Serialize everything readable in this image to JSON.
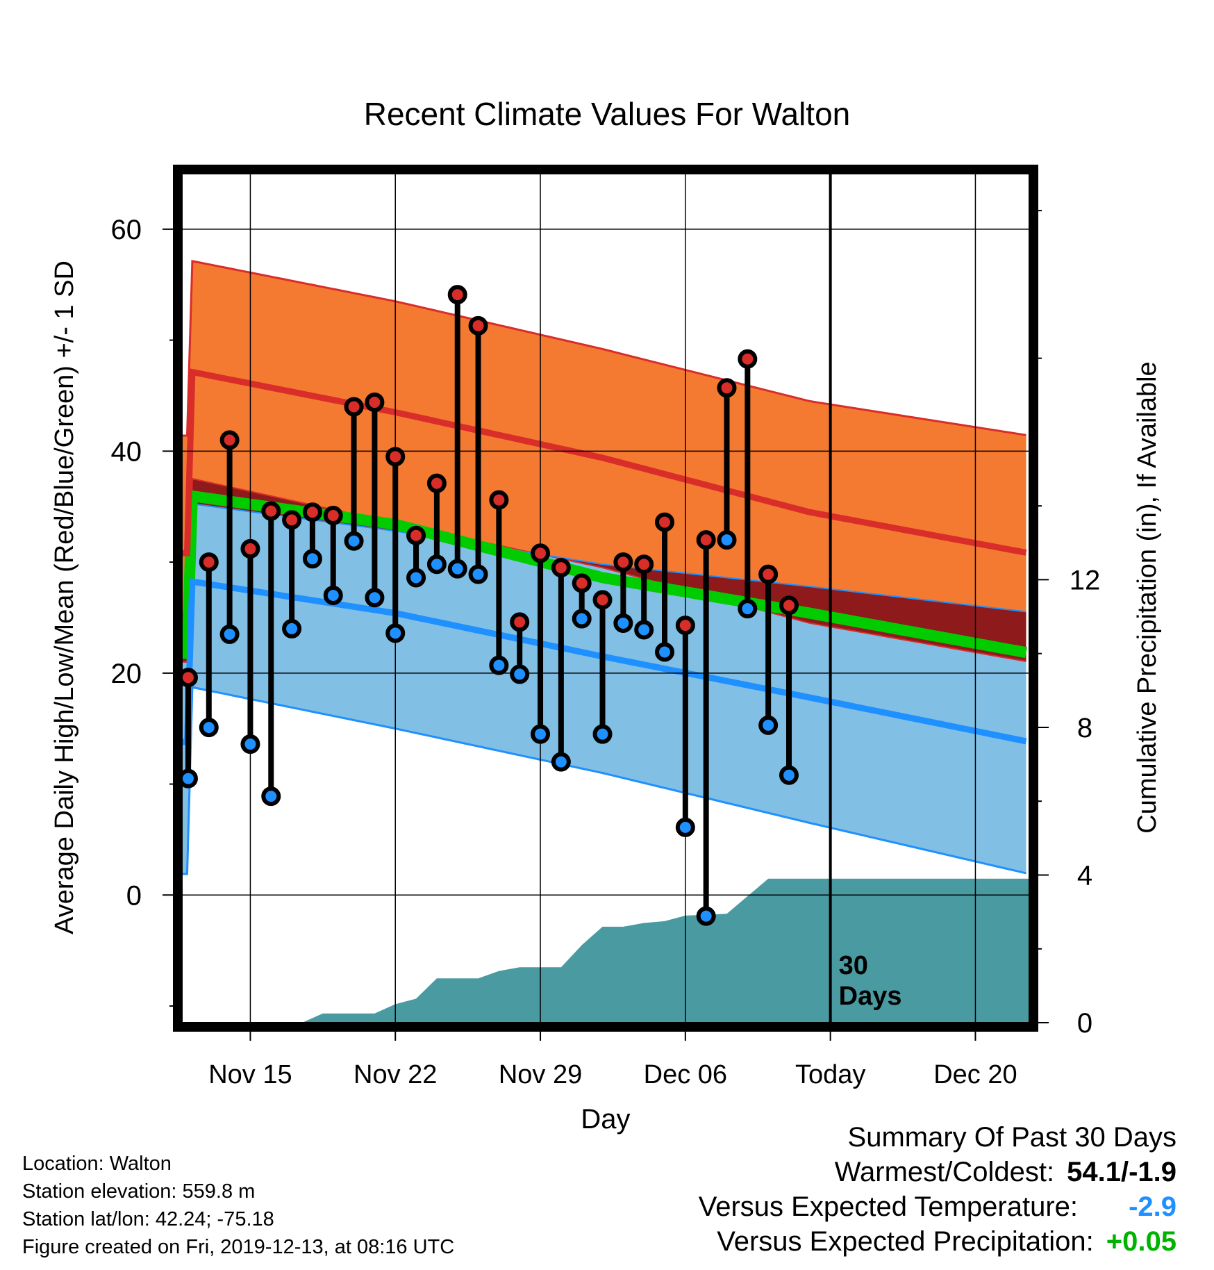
{
  "chart_data": {
    "type": "line",
    "title": "Recent Climate Values For Walton",
    "xlabel": "Day",
    "ylabel": "Average Daily High/Low/Mean (Red/Blue/Green) +/- 1 SD",
    "y2label": "Cumulative Precipitation (in), If Available",
    "x_tick_labels": [
      "Nov 15",
      "Nov 22",
      "Nov 29",
      "Dec 06",
      "Today",
      "Dec 20"
    ],
    "x_tick_positions": [
      3,
      10,
      17,
      24,
      31,
      38
    ],
    "xlim": [
      -0.3,
      40.6
    ],
    "ylim": [
      -11.5,
      65
    ],
    "y_ticks": [
      0,
      20,
      40,
      60
    ],
    "y2lim": [
      0,
      23
    ],
    "y2_ticks": [
      0,
      4,
      8,
      12
    ],
    "today_index": 31,
    "today_label": "30\nDays",
    "grid": true,
    "series": [
      {
        "name": "Average high (+/- 1 SD)",
        "color": "#f47a31",
        "line_color": "#d92d2a",
        "anchors": [
          [
            0,
            47.2,
            57.2,
            37.6
          ],
          [
            10,
            43.5,
            53.5,
            33.5
          ],
          [
            20,
            39.4,
            49.2,
            29.5
          ],
          [
            30,
            34.5,
            44.5,
            24.5
          ],
          [
            40.6,
            30.8,
            41.4,
            21.0
          ]
        ]
      },
      {
        "name": "Average low (+/- 1 SD)",
        "color": "#82bfe4",
        "line_color": "#1e90ff",
        "anchors": [
          [
            0,
            28.3,
            35.3,
            18.8
          ],
          [
            10,
            25.4,
            32.8,
            15.0
          ],
          [
            20,
            21.5,
            29.8,
            11.0
          ],
          [
            30,
            17.8,
            27.8,
            6.5
          ],
          [
            40.6,
            13.8,
            25.5,
            1.9
          ]
        ]
      },
      {
        "name": "Average mean",
        "color": "#00cc00",
        "anchors": [
          [
            0,
            36.0
          ],
          [
            10,
            33.4
          ],
          [
            20,
            28.6
          ],
          [
            30,
            25.4
          ],
          [
            40.6,
            21.8
          ]
        ]
      },
      {
        "name": "Cumulative precipitation",
        "color": "#4a9aa2",
        "points": [
          [
            0,
            0
          ],
          [
            5,
            0
          ],
          [
            5.5,
            0.0
          ],
          [
            6.5,
            0.25
          ],
          [
            8.5,
            0.25
          ],
          [
            9,
            0.25
          ],
          [
            10,
            0.5
          ],
          [
            11,
            0.65
          ],
          [
            12,
            1.2
          ],
          [
            13.5,
            1.2
          ],
          [
            14,
            1.2
          ],
          [
            15,
            1.4
          ],
          [
            16,
            1.5
          ],
          [
            17.5,
            1.5
          ],
          [
            18,
            1.5
          ],
          [
            19,
            2.1
          ],
          [
            20,
            2.6
          ],
          [
            21,
            2.6
          ],
          [
            22,
            2.7
          ],
          [
            23,
            2.75
          ],
          [
            24,
            2.9
          ],
          [
            26,
            2.95
          ],
          [
            28,
            3.9
          ],
          [
            31,
            3.9
          ],
          [
            40.6,
            3.9
          ]
        ]
      }
    ],
    "daily": {
      "high": [
        19.6,
        30.0,
        41.0,
        31.2,
        34.6,
        33.8,
        34.5,
        34.2,
        44.0,
        44.4,
        39.5,
        32.4,
        37.1,
        54.1,
        51.3,
        35.6,
        24.6,
        30.8,
        29.5,
        28.1,
        26.6,
        30.0,
        29.8,
        33.6,
        24.3,
        32.0,
        45.7,
        48.3,
        28.9,
        26.1
      ],
      "low": [
        10.5,
        15.1,
        23.5,
        13.6,
        8.9,
        24.0,
        30.3,
        27.0,
        31.9,
        26.8,
        23.6,
        28.6,
        29.8,
        29.4,
        28.9,
        20.7,
        19.9,
        14.5,
        12.0,
        24.9,
        14.5,
        24.5,
        23.9,
        21.9,
        6.1,
        -1.9,
        32.0,
        25.8,
        15.3,
        10.8
      ]
    }
  },
  "footer": {
    "location": "Location: Walton",
    "elevation": "Station elevation: 559.8 m",
    "latlon": "Station lat/lon: 42.24; -75.18",
    "created": "Figure created on Fri, 2019-12-13, at 08:16 UTC"
  },
  "summary": {
    "heading": "Summary Of Past 30 Days",
    "warmest_label": "Warmest/Coldest:",
    "warmest_value": "54.1/-1.9",
    "temp_label": "Versus Expected Temperature:",
    "temp_value": "-2.9",
    "temp_color": "#1e90ff",
    "precip_label": "Versus Expected Precipitation:",
    "precip_value": "+0.05",
    "precip_color": "#00b300"
  }
}
